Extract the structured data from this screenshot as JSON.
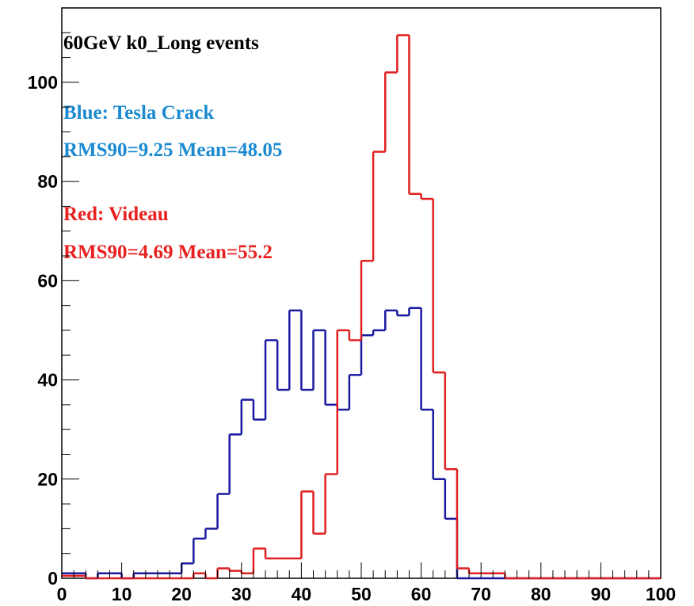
{
  "chart_data": {
    "type": "histogram",
    "bins": [
      0,
      2,
      4,
      6,
      8,
      10,
      12,
      14,
      16,
      18,
      20,
      22,
      24,
      26,
      28,
      30,
      32,
      34,
      36,
      38,
      40,
      42,
      44,
      46,
      48,
      50,
      52,
      54,
      56,
      58,
      60,
      62,
      64,
      66,
      68,
      70,
      72,
      74,
      76,
      78,
      80,
      82,
      84,
      86,
      88,
      90,
      92,
      94,
      96,
      98,
      100
    ],
    "series": [
      {
        "name": "Blue: Tesla Crack",
        "color": "#1a1aa0",
        "values": [
          1,
          1,
          0,
          1,
          1,
          0,
          1,
          1,
          1,
          1,
          3,
          8,
          10,
          17,
          29,
          36,
          32,
          48,
          38,
          54,
          38,
          50,
          35,
          34,
          41,
          49,
          50,
          54,
          53,
          54.5,
          34,
          20,
          12,
          0,
          0,
          0,
          0,
          0,
          0,
          0,
          0,
          0,
          0,
          0,
          0,
          0,
          0,
          0,
          0,
          0
        ]
      },
      {
        "name": "Red: Videau",
        "color": "#e02020",
        "values": [
          0.5,
          0.5,
          0,
          0,
          0,
          0,
          0,
          0,
          0,
          0,
          0,
          1,
          0,
          2,
          1.5,
          1,
          6,
          4,
          4,
          4,
          17.5,
          9,
          21,
          50,
          48,
          64,
          86,
          102,
          109.5,
          77.5,
          76.5,
          41.5,
          22,
          2,
          1,
          1,
          1,
          0,
          0,
          0,
          0,
          0,
          0,
          0,
          0,
          0,
          0,
          0,
          0,
          0
        ]
      }
    ],
    "annotations": [
      "60GeV k0_Long events",
      "RMS90=9.25 Mean=48.05",
      "RMS90=4.69 Mean=55.2"
    ],
    "xlim": [
      0,
      100
    ],
    "ylim": [
      0,
      115
    ],
    "xticks": [
      0,
      10,
      20,
      30,
      40,
      50,
      60,
      70,
      80,
      90,
      100
    ],
    "yticks": [
      0,
      20,
      40,
      60,
      80,
      100
    ]
  }
}
